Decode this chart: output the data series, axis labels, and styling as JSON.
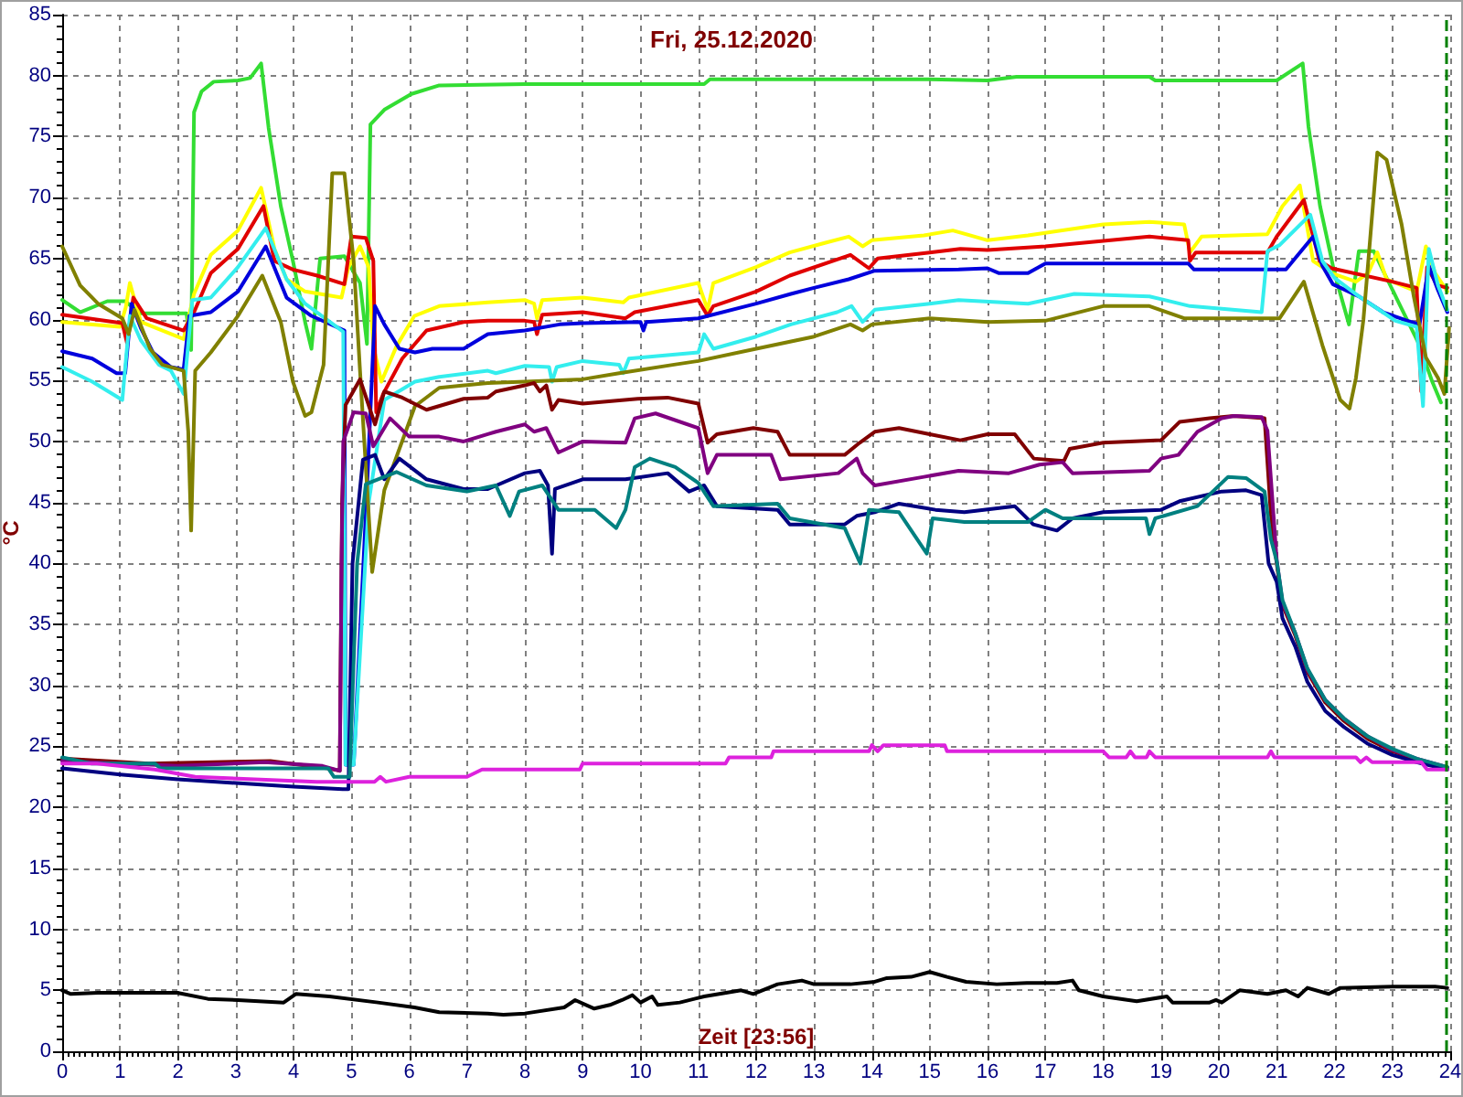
{
  "chart_data": {
    "type": "line",
    "title": "Fri, 25.12.2020",
    "xlabel": "Zeit [23:56]",
    "ylabel": "°C",
    "xlim": [
      0,
      24
    ],
    "xticks": [
      0,
      1,
      2,
      3,
      4,
      5,
      6,
      7,
      8,
      9,
      10,
      11,
      12,
      13,
      14,
      15,
      16,
      17,
      18,
      19,
      20,
      21,
      22,
      23,
      24
    ],
    "ylim": [
      0,
      85
    ],
    "yticks": [
      0,
      5,
      10,
      15,
      20,
      25,
      30,
      35,
      40,
      45,
      50,
      55,
      60,
      65,
      70,
      75,
      80,
      85
    ],
    "grid": true,
    "marker": "none",
    "line_style": "solid",
    "ref_lines": [
      {
        "axis": "x",
        "value": 23.93,
        "color": "#008000",
        "line_style": "dashed"
      }
    ],
    "series": [
      {
        "color": "#33dd33",
        "x": [
          0,
          0.31,
          0.78,
          1.09,
          1.35,
          2.15,
          2.23,
          2.28,
          2.41,
          2.62,
          3.04,
          3.25,
          3.44,
          3.57,
          3.78,
          3.99,
          4.2,
          4.31,
          4.46,
          4.88,
          5.15,
          5.27,
          5.33,
          5.57,
          6.04,
          6.52,
          8,
          10,
          11.1,
          11.2,
          13,
          15,
          16,
          16.5,
          17,
          18.8,
          18.9,
          20,
          21.0,
          21.45,
          21.55,
          21.75,
          22.0,
          22.25,
          22.42,
          22.68,
          22.85,
          23.16,
          23.47,
          23.69,
          23.84
        ],
        "values": [
          61.6,
          60.6,
          61.5,
          61.5,
          60.5,
          60.5,
          57.5,
          77,
          78.7,
          79.5,
          79.6,
          79.8,
          81,
          75.7,
          69.3,
          64.8,
          59.8,
          57.6,
          65,
          65.2,
          63,
          58,
          76,
          77.2,
          78.5,
          79.2,
          79.3,
          79.3,
          79.3,
          79.7,
          79.7,
          79.7,
          79.6,
          79.9,
          79.9,
          79.9,
          79.6,
          79.6,
          79.6,
          81,
          75.8,
          69.3,
          63.8,
          59.6,
          65.6,
          65.6,
          63.9,
          60.9,
          57.9,
          54.9,
          53.2
        ]
      },
      {
        "color": "#ffff00",
        "x": [
          0,
          1.0,
          1.1,
          1.17,
          1.36,
          2.1,
          2.28,
          2.57,
          3.04,
          3.44,
          3.67,
          3.88,
          4.2,
          4.83,
          4.95,
          5.15,
          5.3,
          5.38,
          5.52,
          5.78,
          6.09,
          6.52,
          7.36,
          8.0,
          8.16,
          8.21,
          8.3,
          9.0,
          9.7,
          9.8,
          11.0,
          11.16,
          11.26,
          12.0,
          12.58,
          13.2,
          13.6,
          13.84,
          14.0,
          14.9,
          15.4,
          16.0,
          16.7,
          18.0,
          18.8,
          19.4,
          19.5,
          19.7,
          20.84,
          21.1,
          21.4,
          21.63,
          21.95,
          22.37,
          22.58,
          22.74,
          22.9,
          23.42,
          23.58,
          23.74,
          23.95
        ],
        "values": [
          59.8,
          59.4,
          61,
          63,
          59.8,
          58.4,
          62.1,
          65.3,
          67.3,
          70.8,
          65.8,
          63.3,
          62.3,
          61.8,
          64.3,
          66,
          64.3,
          57.8,
          54.9,
          57.8,
          60.3,
          61.1,
          61.4,
          61.6,
          61.3,
          60.1,
          61.6,
          61.8,
          61.4,
          61.8,
          63,
          60.8,
          63,
          64.3,
          65.5,
          66.3,
          66.8,
          66,
          66.5,
          66.9,
          67.3,
          66.5,
          66.9,
          67.8,
          68,
          67.8,
          65.5,
          66.8,
          67,
          69.3,
          71,
          64.8,
          63.8,
          63.1,
          63.8,
          65.5,
          63.3,
          62.3,
          66,
          63.8,
          62.3
        ]
      },
      {
        "color": "#e00000",
        "x": [
          0,
          1.04,
          1.12,
          1.23,
          1.46,
          2.1,
          2.28,
          2.57,
          3.04,
          3.48,
          3.67,
          3.99,
          4.41,
          4.88,
          5.0,
          5.25,
          5.38,
          5.43,
          5.55,
          5.88,
          6.3,
          6.94,
          7.36,
          8.0,
          8.16,
          8.21,
          8.3,
          9.0,
          9.74,
          9.9,
          11.0,
          11.16,
          11.26,
          12.0,
          12.58,
          13.63,
          13.95,
          14.1,
          15.0,
          15.53,
          16.0,
          17.0,
          18.8,
          19.47,
          19.5,
          19.6,
          20.84,
          21.0,
          21.47,
          21.74,
          21.95,
          23.0,
          23.42,
          23.5,
          23.6,
          23.78,
          23.95
        ],
        "values": [
          60.4,
          59.7,
          58.1,
          61.8,
          60.1,
          59.1,
          60.6,
          63.8,
          65.8,
          69.3,
          64.8,
          64.1,
          63.6,
          62.9,
          66.8,
          66.7,
          64.8,
          52.4,
          53.9,
          56.8,
          59.1,
          59.8,
          59.9,
          59.9,
          59.8,
          58.8,
          60.4,
          60.6,
          60.1,
          60.6,
          61.6,
          60.3,
          61.1,
          62.3,
          63.6,
          65.3,
          64.2,
          65,
          65.5,
          65.8,
          65.7,
          66,
          66.8,
          66.5,
          64.8,
          65.5,
          65.5,
          66.8,
          69.8,
          64.8,
          64.2,
          63.1,
          62.6,
          54.1,
          64.3,
          62.8,
          62.6
        ]
      },
      {
        "color": "#0000dd",
        "x": [
          0,
          0.52,
          0.94,
          1.09,
          1.2,
          1.36,
          1.57,
          1.88,
          2.1,
          2.2,
          2.57,
          3.04,
          3.52,
          3.88,
          4.31,
          4.88,
          4.9,
          5.04,
          5.26,
          5.41,
          5.57,
          5.83,
          6.1,
          6.4,
          6.94,
          7.36,
          8.0,
          8.6,
          9.0,
          10.0,
          10.05,
          10.1,
          11.0,
          12.0,
          12.6,
          13.0,
          13.6,
          14.05,
          15.5,
          16.0,
          16.2,
          16.7,
          17.0,
          19.47,
          19.57,
          21.16,
          21.63,
          21.79,
          21.97,
          22.42,
          22.84,
          23.26,
          23.47,
          23.63,
          23.79,
          23.95
        ],
        "values": [
          57.4,
          56.8,
          55.6,
          55.6,
          61.3,
          59.3,
          57.3,
          56.1,
          55.9,
          60.3,
          60.6,
          62.3,
          66,
          61.8,
          60.3,
          59.1,
          23.5,
          23.5,
          45,
          61.1,
          59.6,
          57.6,
          57.3,
          57.6,
          57.6,
          58.8,
          59.1,
          59.6,
          59.7,
          59.8,
          59.1,
          59.8,
          60.1,
          61.3,
          62.1,
          62.6,
          63.3,
          64,
          64.1,
          64.2,
          63.8,
          63.8,
          64.6,
          64.6,
          64.1,
          64.1,
          66.8,
          64.4,
          62.9,
          61.9,
          60.6,
          59.9,
          59.6,
          64.4,
          62.4,
          60.6
        ]
      },
      {
        "color": "#33eeee",
        "x": [
          0,
          0.52,
          1.04,
          1.17,
          1.36,
          1.67,
          1.88,
          2.1,
          2.25,
          2.57,
          3.04,
          3.52,
          3.88,
          4.2,
          4.86,
          4.9,
          5.04,
          5.3,
          5.57,
          6.1,
          6.52,
          7.36,
          7.5,
          8.0,
          8.42,
          8.47,
          8.55,
          9.0,
          9.63,
          9.7,
          9.8,
          11.0,
          11.1,
          11.26,
          12.0,
          12.6,
          13.4,
          13.65,
          13.84,
          14.05,
          15.0,
          15.5,
          16.7,
          17.5,
          18.8,
          19.5,
          20.74,
          20.84,
          21.05,
          21.58,
          21.79,
          22.0,
          22.42,
          22.74,
          23.05,
          23.42,
          23.53,
          23.63,
          23.79,
          23.95
        ],
        "values": [
          56.1,
          54.9,
          53.4,
          60.3,
          58.3,
          56.3,
          55.8,
          53.9,
          61.6,
          61.8,
          64.3,
          67.5,
          63.3,
          61.3,
          59,
          23.5,
          23.5,
          45,
          53.4,
          54.9,
          55.3,
          55.8,
          55.6,
          56.2,
          56.1,
          54.9,
          56.1,
          56.6,
          56.3,
          55.6,
          56.8,
          57.3,
          58.8,
          57.6,
          58.6,
          59.6,
          60.6,
          61.1,
          59.8,
          60.8,
          61.3,
          61.6,
          61.3,
          62.1,
          61.9,
          61.1,
          60.6,
          65.6,
          66.1,
          68.6,
          64.8,
          63.4,
          61.9,
          60.9,
          59.9,
          59.4,
          52.9,
          65.8,
          62.8,
          60.8
        ]
      },
      {
        "color": "#808000",
        "x": [
          0,
          0.31,
          0.62,
          1.04,
          1.15,
          1.25,
          1.52,
          1.73,
          2.1,
          2.18,
          2.23,
          2.3,
          2.57,
          3.04,
          3.46,
          3.78,
          3.99,
          4.2,
          4.31,
          4.52,
          4.67,
          4.88,
          5.04,
          5.15,
          5.36,
          5.57,
          6.1,
          6.52,
          7.36,
          8.0,
          9.0,
          9.63,
          10.58,
          11.0,
          12.0,
          13.0,
          13.63,
          13.84,
          14.0,
          15.0,
          16.0,
          17.0,
          18.0,
          18.8,
          19.4,
          21.05,
          21.47,
          21.79,
          22.1,
          22.26,
          22.37,
          22.5,
          22.74,
          22.9,
          23.16,
          23.37,
          23.58,
          23.79,
          23.9,
          23.98
        ],
        "values": [
          66,
          62.8,
          61.3,
          60.1,
          58.8,
          60.8,
          57.6,
          56.3,
          55.8,
          50.8,
          42.7,
          55.8,
          57.3,
          60.3,
          63.6,
          59.8,
          54.9,
          52.1,
          52.4,
          56.3,
          72,
          72,
          64.8,
          55.8,
          39.3,
          46,
          52.9,
          54.4,
          54.8,
          54.9,
          55.1,
          55.6,
          56.3,
          56.6,
          57.6,
          58.6,
          59.6,
          59.1,
          59.6,
          60.1,
          59.8,
          59.9,
          61.1,
          61.1,
          60.1,
          60.1,
          63.1,
          57.9,
          53.4,
          52.7,
          55.2,
          60,
          73.7,
          73.1,
          67.8,
          61.9,
          56.9,
          55.2,
          53.9,
          59.3
        ]
      },
      {
        "color": "#800000",
        "x": [
          0,
          1.5,
          3.6,
          4.6,
          4.8,
          4.84,
          4.9,
          5.15,
          5.41,
          5.57,
          5.88,
          6.3,
          6.94,
          7.36,
          7.5,
          8.0,
          8.16,
          8.26,
          8.37,
          8.47,
          8.58,
          9.0,
          9.95,
          10.47,
          11.0,
          11.16,
          11.32,
          11.95,
          12.37,
          12.58,
          13.53,
          13.79,
          14.05,
          14.47,
          15.0,
          15.53,
          16.0,
          16.47,
          16.8,
          17.32,
          17.42,
          18.0,
          19.0,
          19.32,
          19.84,
          20.26,
          20.79,
          20.9,
          21.0,
          21.1,
          21.32,
          21.53,
          21.84,
          22.16,
          22.58,
          23.0,
          23.42,
          23.95
        ],
        "values": [
          24,
          23.6,
          23.8,
          23.2,
          23,
          45,
          53,
          55.1,
          51.4,
          54.1,
          53.6,
          52.6,
          53.5,
          53.6,
          54.1,
          54.6,
          54.8,
          54.1,
          54.6,
          52.6,
          53.4,
          53.1,
          53.5,
          53.6,
          53.1,
          49.9,
          50.6,
          51.1,
          50.8,
          48.9,
          48.9,
          49.9,
          50.8,
          51.1,
          50.6,
          50.1,
          50.6,
          50.6,
          48.6,
          48.4,
          49.4,
          49.9,
          50.1,
          51.6,
          51.9,
          52.1,
          51.9,
          44,
          40,
          36.6,
          34.1,
          31.1,
          28.6,
          27.1,
          25.6,
          24.6,
          23.9,
          23.2
        ]
      },
      {
        "color": "#800080",
        "x": [
          0,
          2,
          3.5,
          4.5,
          4.8,
          4.83,
          4.86,
          5.04,
          5.25,
          5.38,
          5.67,
          6.0,
          6.52,
          6.94,
          7.36,
          7.5,
          8.0,
          8.16,
          8.37,
          8.58,
          9.0,
          9.74,
          9.9,
          10.26,
          11.0,
          11.16,
          11.32,
          12.26,
          12.42,
          13.42,
          13.74,
          13.84,
          14.05,
          14.9,
          15.5,
          16.37,
          16.9,
          17.3,
          17.47,
          18.8,
          19.0,
          19.3,
          19.63,
          20.05,
          20.26,
          20.74,
          20.84,
          21.0,
          21.1,
          21.32,
          21.53,
          21.84,
          22.16,
          22.58,
          23.0,
          23.42,
          23.95
        ],
        "values": [
          23.8,
          23.4,
          23.7,
          23.4,
          23,
          40,
          50,
          52.4,
          52.3,
          49.6,
          51.9,
          50.4,
          50.4,
          50,
          50.6,
          50.8,
          51.4,
          50.8,
          51.1,
          49.1,
          50,
          49.9,
          51.9,
          52.3,
          51.1,
          47.4,
          48.9,
          48.9,
          46.9,
          47.4,
          48.6,
          47.4,
          46.4,
          47.1,
          47.6,
          47.4,
          48.1,
          48.3,
          47.4,
          47.6,
          48.6,
          48.9,
          50.8,
          51.9,
          52.1,
          52,
          50.9,
          40.3,
          36.8,
          34.3,
          31.3,
          28.8,
          27.3,
          25.8,
          24.7,
          24,
          23.3
        ]
      },
      {
        "color": "#000080",
        "x": [
          0,
          1,
          2,
          3,
          4,
          4.85,
          4.95,
          5.02,
          5.2,
          5.41,
          5.57,
          5.83,
          6.3,
          6.94,
          7.36,
          8.0,
          8.26,
          8.4,
          8.47,
          8.52,
          9.0,
          9.74,
          10.47,
          10.84,
          11.1,
          11.32,
          12.37,
          12.58,
          13.53,
          13.74,
          14.05,
          14.47,
          15.1,
          15.6,
          16.47,
          16.79,
          17.2,
          17.47,
          18.0,
          19.0,
          19.32,
          20.05,
          20.47,
          20.74,
          20.86,
          21.0,
          21.1,
          21.32,
          21.53,
          21.84,
          22.16,
          22.58,
          23.0,
          23.42,
          23.95
        ],
        "values": [
          23.2,
          22.7,
          22.3,
          22,
          21.7,
          21.5,
          21.5,
          40,
          48.5,
          48.9,
          46.9,
          48.6,
          46.9,
          46.1,
          46.1,
          47.4,
          47.6,
          46.4,
          40.8,
          46.1,
          46.9,
          46.9,
          47.4,
          45.9,
          46.4,
          44.7,
          44.4,
          43.2,
          43.2,
          43.9,
          44.2,
          44.9,
          44.4,
          44.2,
          44.7,
          43.2,
          42.7,
          43.7,
          44.2,
          44.4,
          45.1,
          45.9,
          46,
          45.6,
          40,
          38.5,
          35.5,
          33.2,
          30.3,
          27.9,
          26.6,
          25.2,
          24.3,
          23.7,
          23.1
        ]
      },
      {
        "color": "#008080",
        "x": [
          0,
          0.5,
          1.6,
          1.7,
          4.6,
          4.7,
          4.97,
          5.1,
          5.25,
          5.78,
          6.3,
          7.0,
          7.5,
          7.74,
          7.9,
          8.3,
          8.58,
          9.21,
          9.58,
          9.74,
          9.9,
          10.16,
          10.6,
          11.0,
          11.26,
          12.37,
          12.58,
          13.53,
          13.8,
          13.95,
          14.47,
          14.95,
          15.05,
          15.6,
          16.7,
          17.0,
          17.3,
          18.74,
          18.8,
          18.9,
          19.63,
          20.16,
          20.47,
          20.79,
          20.9,
          21.0,
          21.1,
          21.32,
          21.53,
          21.84,
          22.16,
          22.58,
          23.0,
          23.42,
          23.95
        ],
        "values": [
          24.1,
          23.6,
          23.6,
          23.2,
          23.2,
          22.5,
          22.5,
          40,
          46.5,
          47.5,
          46.4,
          45.9,
          46.4,
          43.9,
          45.9,
          46.4,
          44.4,
          44.4,
          42.9,
          44.4,
          47.9,
          48.6,
          47.9,
          46.6,
          44.7,
          44.9,
          43.7,
          42.9,
          40,
          44.4,
          44.2,
          40.8,
          43.7,
          43.4,
          43.4,
          44.4,
          43.7,
          43.7,
          42.4,
          43.7,
          44.7,
          47.1,
          47,
          45.9,
          42,
          40.2,
          37,
          34.3,
          31.4,
          28.8,
          27.3,
          25.8,
          24.8,
          24,
          23.3
        ]
      },
      {
        "color": "#dd22dd",
        "x": [
          0,
          0.6,
          1.6,
          2.3,
          4.4,
          5.4,
          5.5,
          5.6,
          6.0,
          7.0,
          7.26,
          8.95,
          9.0,
          11.47,
          11.53,
          12.26,
          12.3,
          13.95,
          14.0,
          14.1,
          14.2,
          15.26,
          15.3,
          18.0,
          18.1,
          18.4,
          18.47,
          18.55,
          18.75,
          18.8,
          18.9,
          20.84,
          20.9,
          20.96,
          22.37,
          22.45,
          22.55,
          22.65,
          23.5,
          23.6,
          23.95
        ],
        "values": [
          23.6,
          23.6,
          23.1,
          22.5,
          22.1,
          22.1,
          22.5,
          22.1,
          22.5,
          22.5,
          23.1,
          23.1,
          23.6,
          23.6,
          24.1,
          24.1,
          24.6,
          24.6,
          25.1,
          24.6,
          25.1,
          25.1,
          24.6,
          24.6,
          24.1,
          24.1,
          24.6,
          24.1,
          24.1,
          24.6,
          24.1,
          24.1,
          24.6,
          24.1,
          24.1,
          23.7,
          24.1,
          23.7,
          23.7,
          23.1,
          23.1
        ]
      },
      {
        "color": "#000000",
        "x": [
          0,
          0.15,
          0.62,
          1.99,
          2.52,
          3.04,
          3.83,
          4.04,
          4.62,
          5.46,
          6.09,
          6.52,
          7.36,
          7.63,
          8.0,
          8.68,
          8.87,
          9.2,
          9.47,
          9.68,
          9.86,
          10.0,
          10.2,
          10.3,
          10.68,
          11.1,
          11.74,
          11.95,
          12.37,
          12.79,
          13.0,
          13.63,
          14.05,
          14.26,
          14.68,
          15.0,
          15.3,
          15.63,
          16.16,
          16.68,
          17.2,
          17.47,
          17.58,
          18.0,
          18.58,
          19.1,
          19.2,
          19.84,
          19.95,
          20.05,
          20.36,
          20.84,
          21.16,
          21.37,
          21.53,
          21.9,
          22.1,
          23.0,
          23.74,
          23.95
        ],
        "values": [
          5,
          4.7,
          4.8,
          4.8,
          4.3,
          4.2,
          4,
          4.7,
          4.5,
          4,
          3.6,
          3.2,
          3.1,
          3,
          3.1,
          3.6,
          4.2,
          3.5,
          3.8,
          4.2,
          4.6,
          4,
          4.5,
          3.8,
          4,
          4.5,
          5,
          4.7,
          5.5,
          5.8,
          5.5,
          5.5,
          5.7,
          6,
          6.1,
          6.5,
          6.1,
          5.7,
          5.5,
          5.6,
          5.6,
          5.8,
          5,
          4.5,
          4.1,
          4.5,
          4,
          4,
          4.2,
          4,
          5,
          4.7,
          5,
          4.5,
          5.2,
          4.7,
          5.2,
          5.3,
          5.3,
          5.2
        ]
      }
    ]
  }
}
